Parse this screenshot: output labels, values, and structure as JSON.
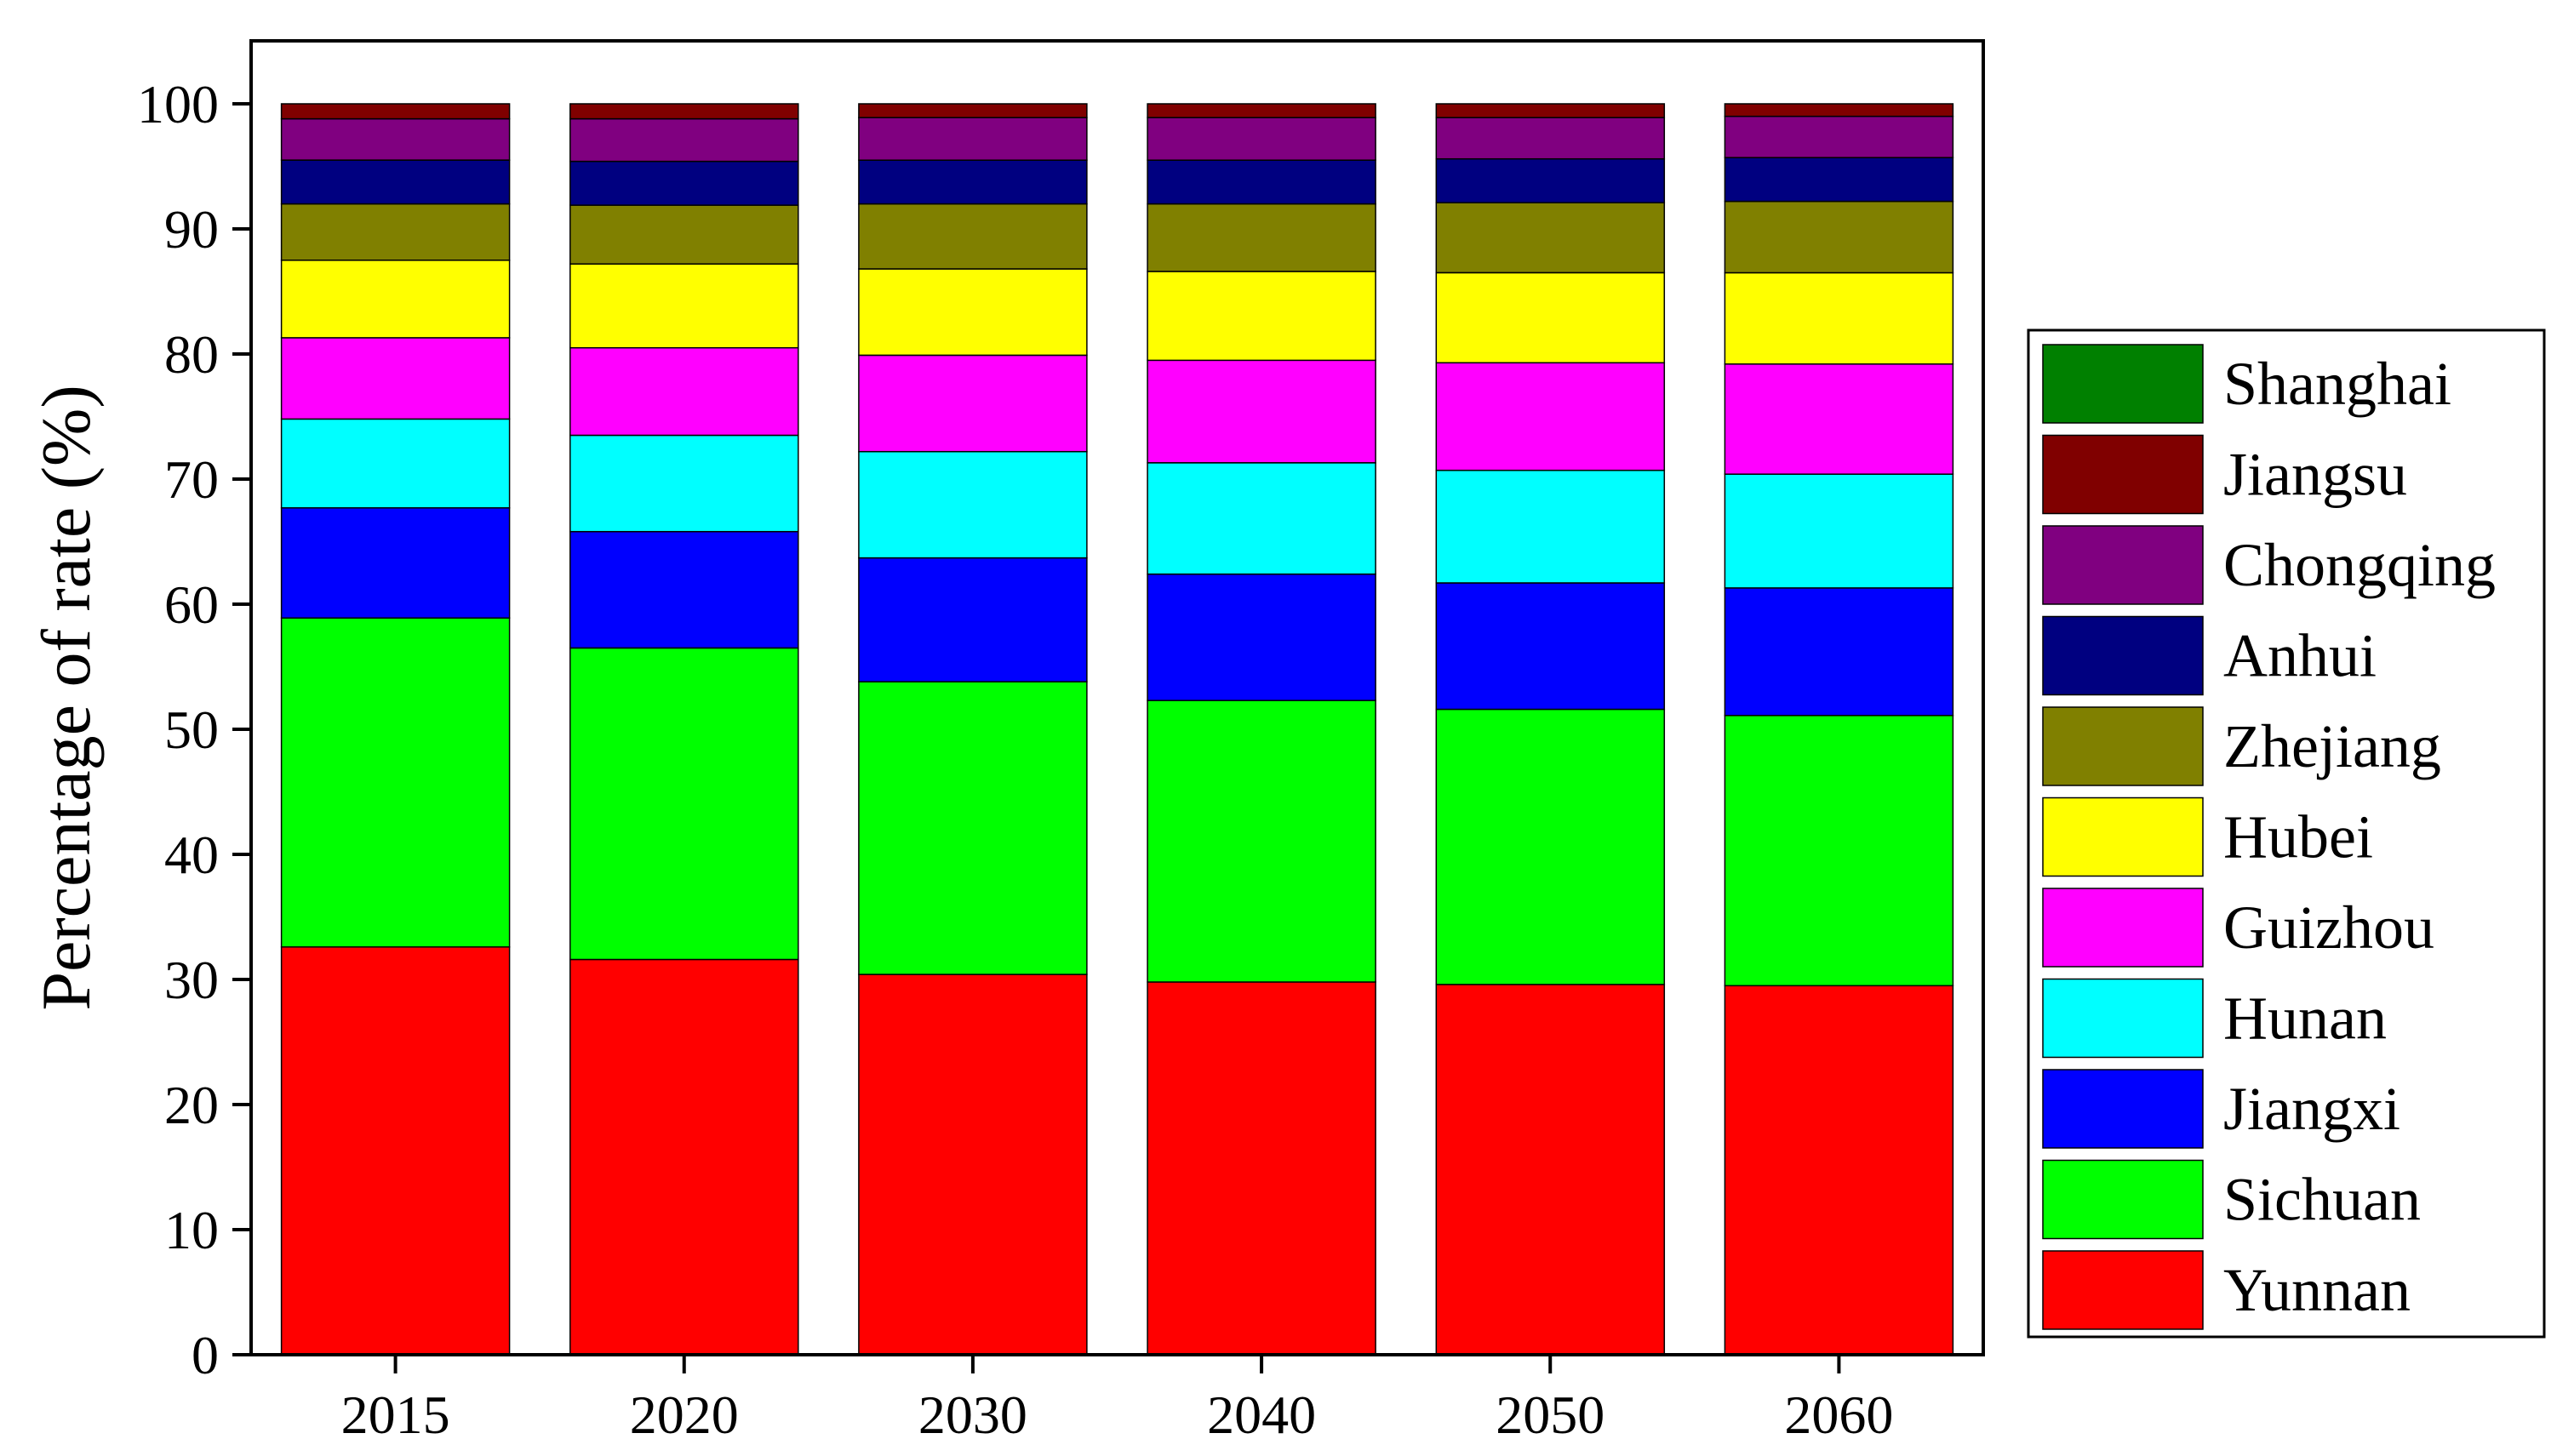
{
  "chart_data": {
    "type": "bar",
    "stacked": true,
    "title": "",
    "xlabel": "",
    "ylabel": "Percentage of rate (%)",
    "ylim": [
      0,
      100
    ],
    "yticks": [
      0,
      10,
      20,
      30,
      40,
      50,
      60,
      70,
      80,
      90,
      100
    ],
    "ytick_labels": [
      "0",
      "10",
      "20",
      "30",
      "40",
      "50",
      "60",
      "70",
      "80",
      "90",
      "100"
    ],
    "categories": [
      "2015",
      "2020",
      "2030",
      "2040",
      "2050",
      "2060"
    ],
    "grid": false,
    "legend_position": "right",
    "series": [
      {
        "name": "Yunnan",
        "color": "#FF0000",
        "values": [
          32.6,
          31.6,
          30.4,
          29.8,
          29.6,
          29.5
        ]
      },
      {
        "name": "Sichuan",
        "color": "#00FF00",
        "values": [
          26.3,
          24.9,
          23.4,
          22.5,
          22.0,
          21.6
        ]
      },
      {
        "name": "Jiangxi",
        "color": "#0000FF",
        "values": [
          8.8,
          9.3,
          9.9,
          10.1,
          10.1,
          10.2
        ]
      },
      {
        "name": "Hunan",
        "color": "#00FFFF",
        "values": [
          7.1,
          7.7,
          8.5,
          8.9,
          9.0,
          9.1
        ]
      },
      {
        "name": "Guizhou",
        "color": "#FF00FF",
        "values": [
          6.5,
          7.0,
          7.7,
          8.2,
          8.6,
          8.8
        ]
      },
      {
        "name": "Hubei",
        "color": "#FFFF00",
        "values": [
          6.2,
          6.7,
          6.9,
          7.1,
          7.2,
          7.3
        ]
      },
      {
        "name": "Zhejiang",
        "color": "#808000",
        "values": [
          4.5,
          4.7,
          5.2,
          5.4,
          5.6,
          5.7
        ]
      },
      {
        "name": "Anhui",
        "color": "#000080",
        "values": [
          3.5,
          3.5,
          3.5,
          3.5,
          3.5,
          3.5
        ]
      },
      {
        "name": "Chongqing",
        "color": "#800080",
        "values": [
          3.3,
          3.4,
          3.4,
          3.4,
          3.3,
          3.3
        ]
      },
      {
        "name": "Jiangsu",
        "color": "#800000",
        "values": [
          1.2,
          1.2,
          1.1,
          1.1,
          1.1,
          1.0
        ]
      },
      {
        "name": "Shanghai",
        "color": "#008000",
        "values": [
          0.0,
          0.0,
          0.0,
          0.0,
          0.0,
          0.0
        ]
      }
    ],
    "legend_order": [
      "Shanghai",
      "Jiangsu",
      "Chongqing",
      "Anhui",
      "Zhejiang",
      "Hubei",
      "Guizhou",
      "Hunan",
      "Jiangxi",
      "Sichuan",
      "Yunnan"
    ]
  }
}
